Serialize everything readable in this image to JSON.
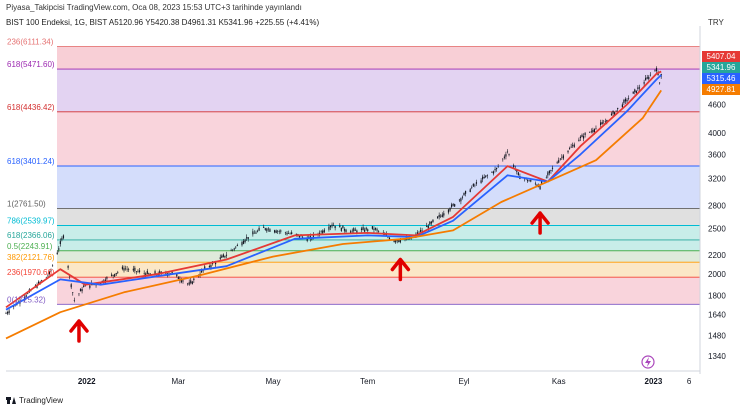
{
  "header": {
    "publish_line": "Piyasa_Takipcisi TradingView.com, Oca 08, 2023 15:53 UTC+3 tarihinde yayınlandı",
    "symbol_line": "BIST 100 Endeksi, 1G, BIST  A5120.96  Y5420.38  D4961.31  K5341.96  +225.55 (+4.41%)"
  },
  "currency": "TRY",
  "footer": {
    "brand": "TradingView"
  },
  "colors": {
    "price": "#131722",
    "ma_fast": "#e53935",
    "ma_mid": "#2962ff",
    "ma_slow": "#f57c00",
    "arrow": "#e00000",
    "fib_top_line": "#d32f2f",
    "zone_upper": "#f8cfd6",
    "zone_purple": "#e3d3f2",
    "zone_red": "#f9d4dc",
    "zone_blue": "#d4ddfb",
    "zone_gray": "#e0e0e0",
    "zone_teal": "#c8ede9",
    "zone_green": "#dfeadb",
    "zone_orange": "#fbe7c7",
    "zone_lower": "#f9d4dc"
  },
  "chart_data": {
    "type": "candlestick",
    "y_scale": "log",
    "ylim": [
      1250,
      6500
    ],
    "x_tick_labels": [
      "2022",
      "Mar",
      "May",
      "Tem",
      "Eyl",
      "Kas",
      "2023",
      "6"
    ],
    "y_tick_labels": [
      4600,
      4000,
      3600,
      3200,
      2800,
      2500,
      2200,
      2000,
      1800,
      1640,
      1480,
      1340
    ],
    "price_badges": [
      {
        "label": "5407.04",
        "color": "#e53935"
      },
      {
        "label": "5341.96",
        "color": "#26a69a"
      },
      {
        "label": "5315.46",
        "color": "#2962ff"
      },
      {
        "label": "4927.81",
        "color": "#f57c00"
      }
    ],
    "fib_levels": [
      {
        "label": "236(6111.34)",
        "value": 6111.34,
        "color": "#e57373"
      },
      {
        "label": "618(5471.60)",
        "value": 5471.6,
        "color": "#9c27b0"
      },
      {
        "label": "618(4436.42)",
        "value": 4436.42,
        "color": "#d32f2f"
      },
      {
        "label": "618(3401.24)",
        "value": 3401.24,
        "color": "#2962ff"
      },
      {
        "label": "1(2761.50)",
        "value": 2761.5,
        "color": "#616161"
      },
      {
        "label": "786(2539.97)",
        "value": 2539.97,
        "color": "#00bcd4"
      },
      {
        "label": "618(2366.06)",
        "value": 2366.06,
        "color": "#26a69a"
      },
      {
        "label": "0.5(2243.91)",
        "value": 2243.91,
        "color": "#4caf50"
      },
      {
        "label": "382(2121.76)",
        "value": 2121.76,
        "color": "#ff9800"
      },
      {
        "label": "236(1970.66)",
        "value": 1970.66,
        "color": "#f44336"
      },
      {
        "label": "0(1725.32)",
        "value": 1725.32,
        "color": "#7e57c2"
      }
    ],
    "price_series": {
      "name": "BIST 100",
      "points": [
        [
          "2021-11-10",
          1650
        ],
        [
          "2021-11-25",
          1830
        ],
        [
          "2021-12-08",
          2000
        ],
        [
          "2021-12-17",
          2420
        ],
        [
          "2021-12-21",
          1980
        ],
        [
          "2021-12-24",
          1760
        ],
        [
          "2021-12-30",
          1880
        ],
        [
          "2022-01-10",
          1920
        ],
        [
          "2022-01-25",
          2060
        ],
        [
          "2022-02-10",
          2000
        ],
        [
          "2022-02-25",
          2010
        ],
        [
          "2022-03-08",
          1900
        ],
        [
          "2022-03-18",
          2050
        ],
        [
          "2022-04-01",
          2200
        ],
        [
          "2022-04-15",
          2400
        ],
        [
          "2022-04-25",
          2510
        ],
        [
          "2022-05-10",
          2450
        ],
        [
          "2022-05-25",
          2380
        ],
        [
          "2022-06-08",
          2550
        ],
        [
          "2022-06-20",
          2470
        ],
        [
          "2022-07-05",
          2500
        ],
        [
          "2022-07-18",
          2360
        ],
        [
          "2022-07-29",
          2380
        ],
        [
          "2022-08-10",
          2550
        ],
        [
          "2022-08-25",
          2800
        ],
        [
          "2022-09-08",
          3100
        ],
        [
          "2022-09-22",
          3350
        ],
        [
          "2022-09-29",
          3650
        ],
        [
          "2022-10-06",
          3250
        ],
        [
          "2022-10-20",
          3080
        ],
        [
          "2022-11-01",
          3500
        ],
        [
          "2022-11-15",
          3900
        ],
        [
          "2022-11-30",
          4200
        ],
        [
          "2022-12-12",
          4600
        ],
        [
          "2022-12-23",
          5000
        ],
        [
          "2023-01-03",
          5500
        ],
        [
          "2023-01-05",
          5120
        ],
        [
          "2023-01-06",
          5342
        ]
      ]
    },
    "ma_series": [
      {
        "color": "#e53935",
        "points": [
          [
            "2021-11-10",
            1700
          ],
          [
            "2021-12-15",
            2050
          ],
          [
            "2021-12-31",
            1900
          ],
          [
            "2022-02-15",
            2000
          ],
          [
            "2022-04-01",
            2150
          ],
          [
            "2022-05-15",
            2420
          ],
          [
            "2022-07-01",
            2450
          ],
          [
            "2022-08-01",
            2420
          ],
          [
            "2022-08-25",
            2650
          ],
          [
            "2022-09-29",
            3400
          ],
          [
            "2022-10-25",
            3150
          ],
          [
            "2022-11-15",
            3750
          ],
          [
            "2022-12-15",
            4600
          ],
          [
            "2023-01-03",
            5350
          ],
          [
            "2023-01-06",
            5407
          ]
        ]
      },
      {
        "color": "#2962ff",
        "points": [
          [
            "2021-11-10",
            1680
          ],
          [
            "2021-12-15",
            1950
          ],
          [
            "2022-01-10",
            1900
          ],
          [
            "2022-02-15",
            1980
          ],
          [
            "2022-04-01",
            2080
          ],
          [
            "2022-05-15",
            2380
          ],
          [
            "2022-07-01",
            2420
          ],
          [
            "2022-08-01",
            2400
          ],
          [
            "2022-08-25",
            2600
          ],
          [
            "2022-09-29",
            3250
          ],
          [
            "2022-10-25",
            3150
          ],
          [
            "2022-11-15",
            3600
          ],
          [
            "2022-12-15",
            4450
          ],
          [
            "2023-01-03",
            5200
          ],
          [
            "2023-01-06",
            5315
          ]
        ]
      },
      {
        "color": "#f57c00",
        "points": [
          [
            "2021-11-10",
            1460
          ],
          [
            "2021-12-15",
            1660
          ],
          [
            "2022-01-25",
            1830
          ],
          [
            "2022-03-15",
            1990
          ],
          [
            "2022-05-01",
            2180
          ],
          [
            "2022-06-15",
            2320
          ],
          [
            "2022-07-25",
            2380
          ],
          [
            "2022-08-25",
            2480
          ],
          [
            "2022-09-25",
            2850
          ],
          [
            "2022-10-25",
            3150
          ],
          [
            "2022-11-25",
            3500
          ],
          [
            "2022-12-25",
            4300
          ],
          [
            "2023-01-06",
            4928
          ]
        ]
      }
    ],
    "annotations": [
      {
        "type": "arrow-up",
        "date": "2021-12-27",
        "value": 1590
      },
      {
        "type": "arrow-up",
        "date": "2022-07-22",
        "value": 2150
      },
      {
        "type": "arrow-up",
        "date": "2022-10-20",
        "value": 2700
      }
    ]
  }
}
